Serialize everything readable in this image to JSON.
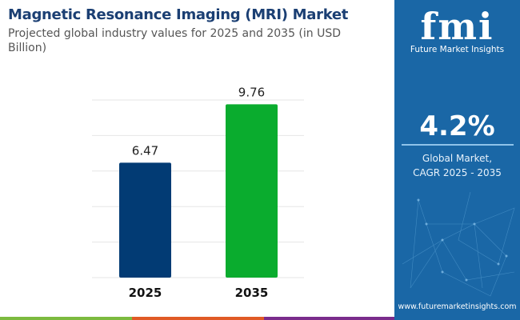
{
  "header": {
    "title": "Magnetic Resonance Imaging (MRI) Market",
    "subtitle": "Projected global industry values for 2025 and 2035 (in USD Billion)"
  },
  "sidebar": {
    "logo_mark": "fmi",
    "logo_text": "Future Market Insights",
    "cagr_value": "4.2%",
    "cagr_label_1": "Global Market,",
    "cagr_label_2": "CAGR 2025 - 2035",
    "url": "www.futuremarketinsights.com",
    "background_color": "#1a67a6"
  },
  "chart_data": {
    "type": "bar",
    "title": "Magnetic Resonance Imaging (MRI) Market",
    "subtitle": "Projected global industry values for 2025 and 2035 (in USD Billion)",
    "categories": [
      "2025",
      "2035"
    ],
    "values": [
      6.47,
      9.76
    ],
    "data_labels": [
      "6.47",
      "9.76"
    ],
    "colors": [
      "#023b74",
      "#0aac2e"
    ],
    "ylim": [
      0,
      10
    ],
    "grid": true,
    "xlabel": "",
    "ylabel": ""
  },
  "footer_stripe_colors": [
    "#7cba3f",
    "#e05a26",
    "#7a2c8c"
  ]
}
